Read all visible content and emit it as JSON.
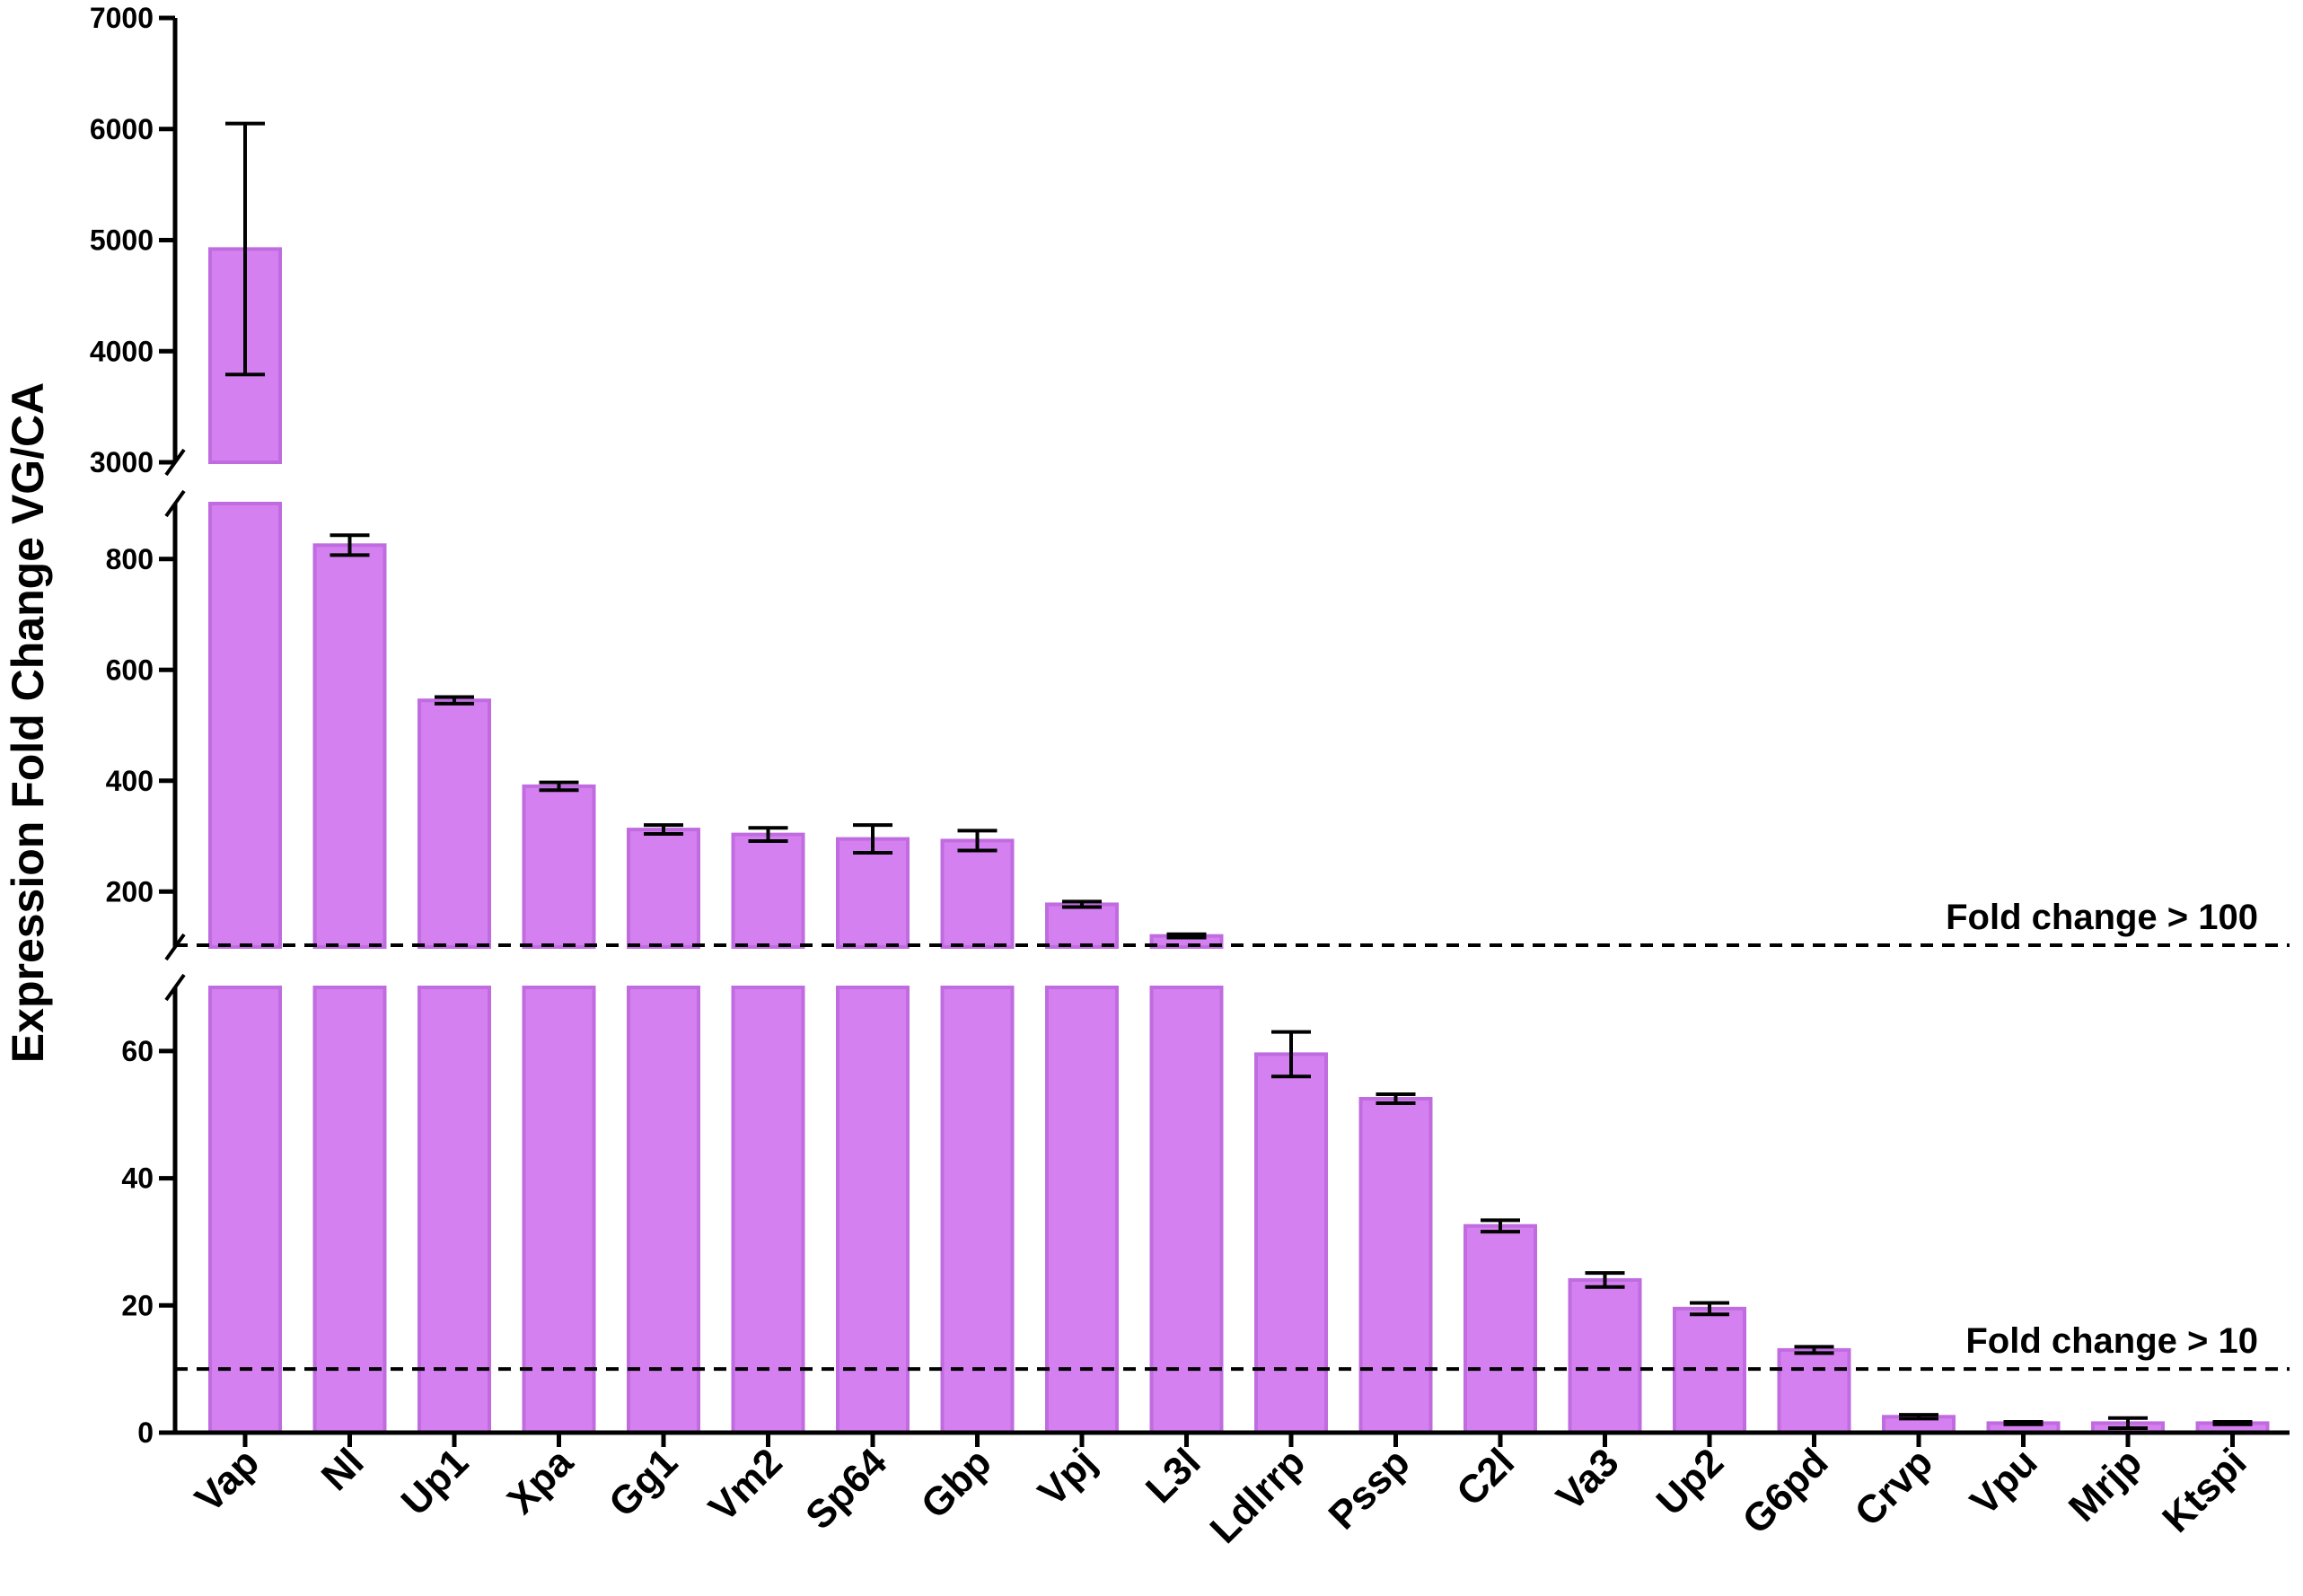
{
  "chart_data": {
    "type": "bar",
    "ylabel": "Expression Fold Change VG/CA",
    "categories": [
      "Vap",
      "Nl",
      "Up1",
      "Xpa",
      "Gg1",
      "Vm2",
      "Sp64",
      "Gbp",
      "Vpj",
      "L3l",
      "Ldlrrp",
      "Pssp",
      "C2l",
      "Va3",
      "Up2",
      "G6pd",
      "Crvp",
      "Vpu",
      "Mrjp",
      "Ktspi"
    ],
    "values": [
      4920,
      825,
      545,
      390,
      312,
      303,
      295,
      292,
      177,
      120,
      59.5,
      52.5,
      32.5,
      24,
      19.5,
      13,
      2.5,
      1.5,
      1.5,
      1.5
    ],
    "errors": [
      1130,
      18,
      6,
      7,
      8,
      12,
      25,
      18,
      5,
      3,
      3.5,
      0.7,
      0.9,
      1.1,
      0.9,
      0.5,
      0.3,
      0.2,
      0.8,
      0.2
    ],
    "y_segments": [
      {
        "range": [
          0,
          70
        ],
        "ticks": [
          0,
          20,
          40,
          60
        ]
      },
      {
        "range": [
          100,
          900
        ],
        "ticks": [
          200,
          400,
          600,
          800
        ]
      },
      {
        "range": [
          3000,
          7000
        ],
        "ticks": [
          3000,
          4000,
          5000,
          6000,
          7000
        ]
      }
    ],
    "reference_lines": [
      {
        "value": 100,
        "label": "Fold change > 100"
      },
      {
        "value": 10,
        "label": "Fold change > 10"
      }
    ],
    "colors": {
      "bar_fill": "#d580f0",
      "bar_stroke": "#c06ce0",
      "error_bar": "#000000",
      "axis": "#000000"
    }
  }
}
